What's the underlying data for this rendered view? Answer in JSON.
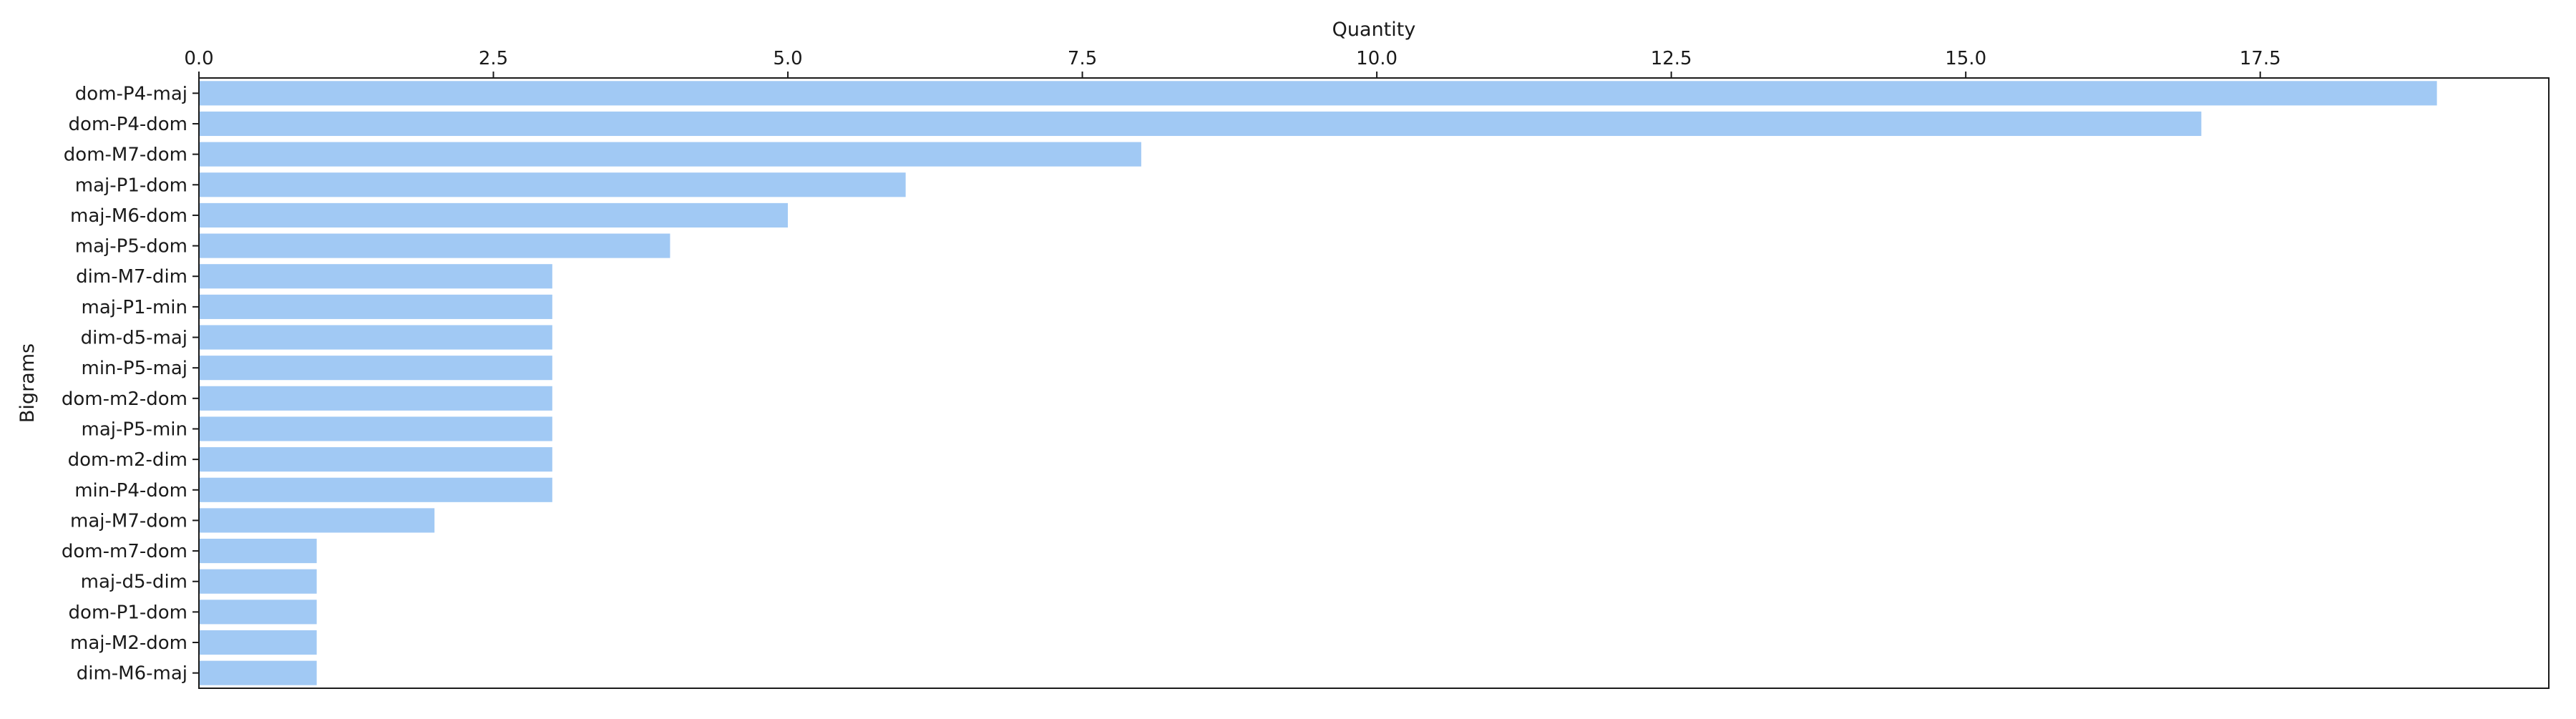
{
  "chart_data": {
    "type": "bar",
    "orientation": "horizontal",
    "title": "",
    "xlabel": "Quantity",
    "ylabel": "Bigrams",
    "xaxis_position": "top",
    "xlim": [
      0,
      19.95
    ],
    "xticks": [
      "0.0",
      "2.5",
      "5.0",
      "7.5",
      "10.0",
      "12.5",
      "15.0",
      "17.5"
    ],
    "grid": false,
    "bar_color": "#a1c9f4",
    "categories": [
      "dom-P4-maj",
      "dom-P4-dom",
      "dom-M7-dom",
      "maj-P1-dom",
      "maj-M6-dom",
      "maj-P5-dom",
      "dim-M7-dim",
      "maj-P1-min",
      "dim-d5-maj",
      "min-P5-maj",
      "dom-m2-dom",
      "maj-P5-min",
      "dom-m2-dim",
      "min-P4-dom",
      "maj-M7-dom",
      "dom-m7-dom",
      "maj-d5-dim",
      "dom-P1-dom",
      "maj-M2-dom",
      "dim-M6-maj"
    ],
    "values": [
      19,
      17,
      8,
      6,
      5,
      4,
      3,
      3,
      3,
      3,
      3,
      3,
      3,
      3,
      2,
      1,
      1,
      1,
      1,
      1
    ]
  }
}
